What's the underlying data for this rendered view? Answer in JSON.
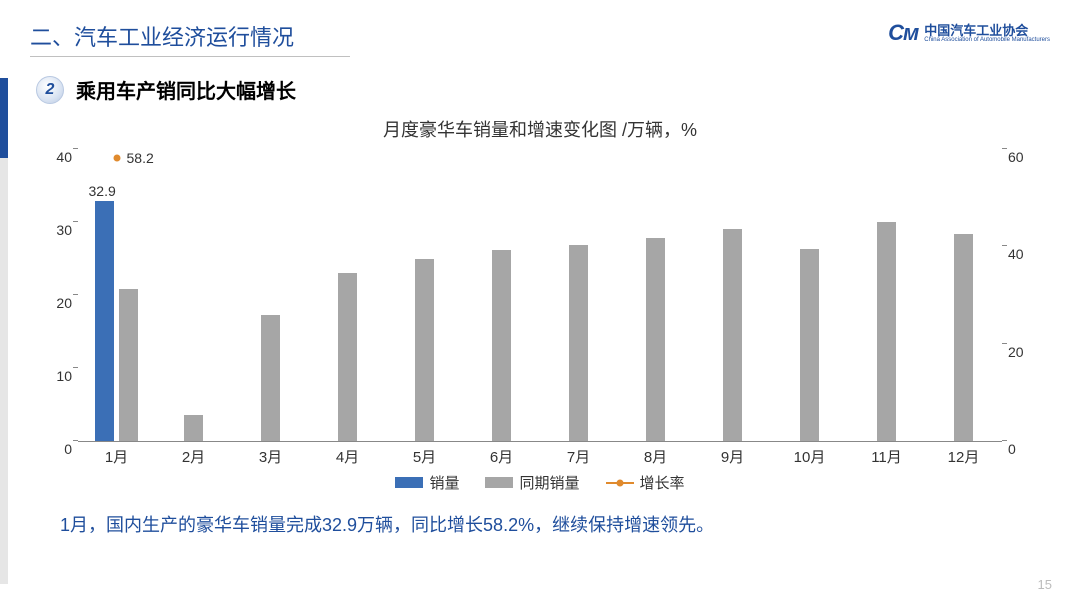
{
  "header": {
    "section_title": "二、汽车工业经济运行情况",
    "logo_cn": "中国汽车工业协会",
    "logo_en": "China Association of Automobile Manufacturers",
    "logo_mark": "Cᴍ"
  },
  "subhead": {
    "number": "2",
    "text": "乘用车产销同比大幅增长"
  },
  "chart": {
    "title": "月度豪华车销量和增速变化图   /万辆，%",
    "type": "bar+line",
    "categories": [
      "1月",
      "2月",
      "3月",
      "4月",
      "5月",
      "6月",
      "7月",
      "8月",
      "9月",
      "10月",
      "11月",
      "12月"
    ],
    "series_sales": {
      "label": "销量",
      "color": "#3b6fb6",
      "values": [
        32.9,
        null,
        null,
        null,
        null,
        null,
        null,
        null,
        null,
        null,
        null,
        null
      ]
    },
    "series_prev": {
      "label": "同期销量",
      "color": "#a6a6a6",
      "values": [
        20.8,
        3.5,
        17.2,
        23.0,
        25.0,
        26.2,
        26.8,
        27.8,
        29.0,
        26.3,
        30.0,
        28.3
      ]
    },
    "series_growth": {
      "label": "增长率",
      "color": "#e08a2d",
      "values": [
        58.2,
        null,
        null,
        null,
        null,
        null,
        null,
        null,
        null,
        null,
        null,
        null
      ]
    },
    "left_axis": {
      "min": 0,
      "max": 40,
      "step": 10
    },
    "right_axis": {
      "min": 0,
      "max": 60,
      "step": 20
    },
    "annotations": {
      "sales_label": "32.9",
      "growth_label": "58.2"
    },
    "background_color": "#ffffff",
    "axis_color": "#888888",
    "label_fontsize": 14
  },
  "footer": {
    "text": "1月，国内生产的豪华车销量完成32.9万辆，同比增长58.2%，继续保持增速领先。",
    "page": "15"
  }
}
